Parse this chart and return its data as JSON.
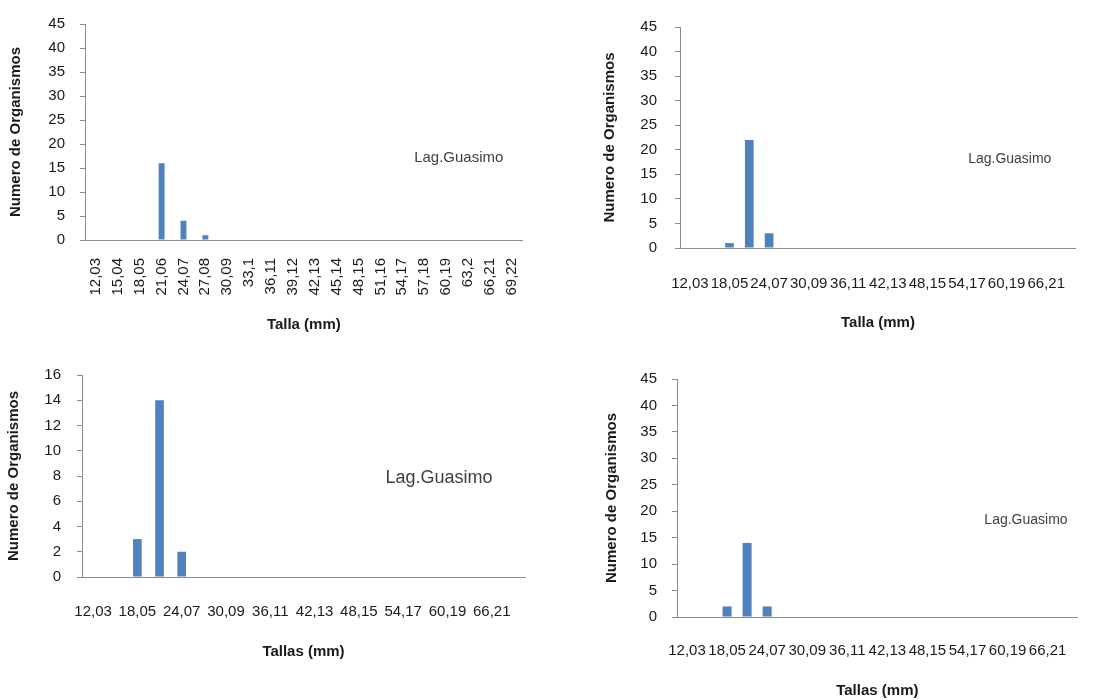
{
  "chart_data": [
    {
      "type": "bar",
      "xlabel": "Talla (mm)",
      "ylabel": "Numero de Organismos",
      "annotations": [
        "Lag.Guasimo"
      ],
      "color": "#4f81bd",
      "categories": [
        "12,03",
        "15,04",
        "18,05",
        "21,06",
        "24,07",
        "27,08",
        "30,09",
        "33,1",
        "36,11",
        "39,12",
        "42,13",
        "45,14",
        "48,15",
        "51,16",
        "54,17",
        "57,18",
        "60,19",
        "63,2",
        "66,21",
        "69,22"
      ],
      "values": [
        0,
        0,
        0,
        16,
        4,
        1,
        0,
        0,
        0,
        0,
        0,
        0,
        0,
        0,
        0,
        0,
        0,
        0,
        0,
        0
      ],
      "ylim": [
        0,
        45
      ],
      "yticks": [
        0,
        5,
        10,
        15,
        20,
        25,
        30,
        35,
        40,
        45
      ]
    },
    {
      "type": "bar",
      "xlabel": "Talla (mm)",
      "ylabel": "Numero de Organismos",
      "annotations": [
        "Lag.Guasimo"
      ],
      "color": "#4f81bd",
      "categories": [
        "12,03",
        null,
        "18,05",
        null,
        "24,07",
        null,
        "30,09",
        null,
        "36,11",
        null,
        "42,13",
        null,
        "48,15",
        null,
        "54,17",
        null,
        "60,19",
        null,
        "66,21",
        null
      ],
      "values": [
        0,
        0,
        1,
        22,
        3,
        0,
        0,
        0,
        0,
        0,
        0,
        0,
        0,
        0,
        0,
        0,
        0,
        0,
        0,
        0
      ],
      "ylim": [
        0,
        45
      ],
      "yticks": [
        0,
        5,
        10,
        15,
        20,
        25,
        30,
        35,
        40,
        45
      ]
    },
    {
      "type": "bar",
      "xlabel": "Tallas (mm)",
      "ylabel": "Numero de Organismos",
      "annotations": [
        "Lag.Guasimo"
      ],
      "color": "#4f81bd",
      "categories": [
        "12,03",
        null,
        "18,05",
        null,
        "24,07",
        null,
        "30,09",
        null,
        "36,11",
        null,
        "42,13",
        null,
        "48,15",
        null,
        "54,17",
        null,
        "60,19",
        null,
        "66,21",
        null
      ],
      "values": [
        0,
        0,
        3,
        14,
        2,
        0,
        0,
        0,
        0,
        0,
        0,
        0,
        0,
        0,
        0,
        0,
        0,
        0,
        0,
        0
      ],
      "ylim": [
        0,
        16
      ],
      "yticks": [
        0,
        2,
        4,
        6,
        8,
        10,
        12,
        14,
        16
      ]
    },
    {
      "type": "bar",
      "xlabel": "Tallas (mm)",
      "ylabel": "Numero de Organismos",
      "annotations": [
        "Lag.Guasimo"
      ],
      "color": "#4f81bd",
      "categories": [
        "12,03",
        null,
        "18,05",
        null,
        "24,07",
        null,
        "30,09",
        null,
        "36,11",
        null,
        "42,13",
        null,
        "48,15",
        null,
        "54,17",
        null,
        "60,19",
        null,
        "66,21",
        null
      ],
      "values": [
        0,
        0,
        2,
        14,
        2,
        0,
        0,
        0,
        0,
        0,
        0,
        0,
        0,
        0,
        0,
        0,
        0,
        0,
        0,
        0
      ],
      "ylim": [
        0,
        45
      ],
      "yticks": [
        0,
        5,
        10,
        15,
        20,
        25,
        30,
        35,
        40,
        45
      ]
    }
  ]
}
